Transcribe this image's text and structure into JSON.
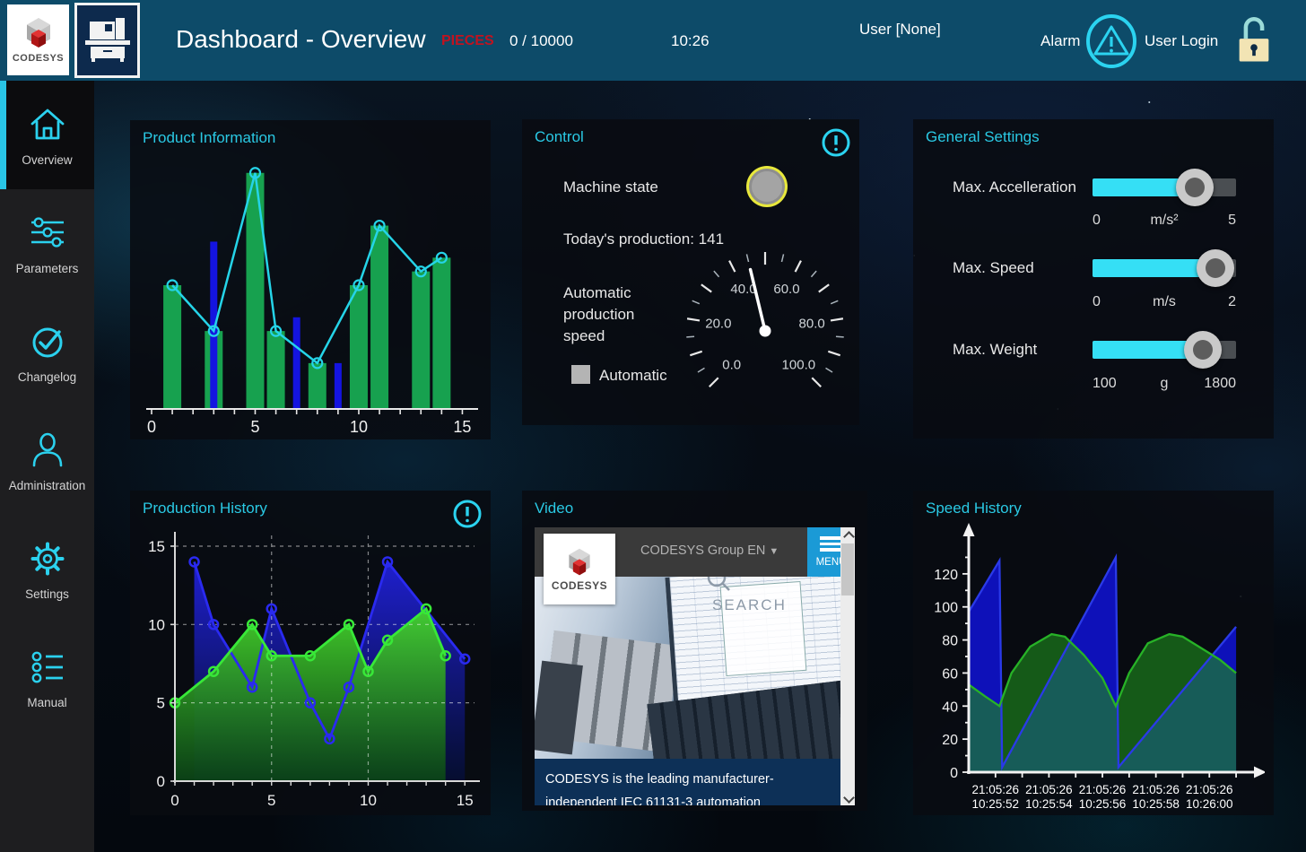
{
  "header": {
    "title": "Dashboard - Overview",
    "pieces_label": "PIECES",
    "pieces_value": "0 / 10000",
    "time": "10:26",
    "user": "User [None]",
    "alarm_label": "Alarm",
    "user_login_label": "User Login",
    "logo_text": "CODESYS"
  },
  "sidebar": {
    "items": [
      {
        "label": "Overview",
        "icon": "home",
        "active": true
      },
      {
        "label": "Parameters",
        "icon": "sliders",
        "active": false
      },
      {
        "label": "Changelog",
        "icon": "check-circle",
        "active": false
      },
      {
        "label": "Administration",
        "icon": "person",
        "active": false
      },
      {
        "label": "Settings",
        "icon": "gear",
        "active": false
      },
      {
        "label": "Manual",
        "icon": "list",
        "active": false
      }
    ]
  },
  "panels": {
    "product_information": {
      "title": "Product Information"
    },
    "control": {
      "title": "Control",
      "machine_state_label": "Machine state",
      "production_label": "Today's production: 141",
      "speed_label": "Automatic production speed",
      "automatic_label": "Automatic",
      "gauge": {
        "min": 0,
        "max": 100,
        "value": 45,
        "labels": [
          "0.0",
          "20.0",
          "40.0",
          "60.0",
          "80.0",
          "100.0"
        ]
      }
    },
    "general_settings": {
      "title": "General Settings",
      "sliders": [
        {
          "label": "Max. Accelleration",
          "min": "0",
          "unit": "m/s²",
          "max": "5",
          "fraction": 0.71
        },
        {
          "label": "Max. Speed",
          "min": "0",
          "unit": "m/s",
          "max": "2",
          "fraction": 0.855
        },
        {
          "label": "Max. Weight",
          "min": "100",
          "unit": "g",
          "max": "1800",
          "fraction": 0.77
        }
      ]
    },
    "production_history": {
      "title": "Production History"
    },
    "video": {
      "title": "Video",
      "site_logo": "CODESYS",
      "nav_label": "CODESYS Group EN",
      "menu_label": "MENU",
      "search_label": "SEARCH",
      "caption_line1": "CODESYS is the leading manufacturer-",
      "caption_line2": "independent IEC 61131-3 automation"
    },
    "speed_history": {
      "title": "Speed History"
    }
  },
  "chart_data": [
    {
      "id": "product_information",
      "type": "bar+line",
      "title": "Product Information",
      "xlim": [
        0,
        15.5
      ],
      "ylim": [
        0,
        10.8
      ],
      "x_ticks": [
        0,
        5,
        10,
        15
      ],
      "green_bars": {
        "x": [
          1,
          3,
          5,
          6,
          8,
          10,
          11,
          13,
          14
        ],
        "values": [
          5.4,
          3.4,
          10.3,
          3.4,
          2.0,
          5.4,
          8.0,
          6.0,
          6.6
        ]
      },
      "blue_bars": {
        "x": [
          3,
          7,
          9
        ],
        "values": [
          7.3,
          4.0,
          2.0
        ]
      },
      "line": {
        "x": [
          1,
          3,
          5,
          6,
          8,
          10,
          11,
          13,
          14
        ],
        "values": [
          5.4,
          3.4,
          10.3,
          3.4,
          2.0,
          5.4,
          8.0,
          6.0,
          6.6
        ]
      },
      "colors": {
        "green_bar": "#17a14f",
        "blue_bar": "#1414e0",
        "line": "#25d4e8"
      }
    },
    {
      "id": "production_history",
      "type": "area",
      "title": "Production History",
      "xlim": [
        0,
        15.5
      ],
      "ylim": [
        0,
        15.8
      ],
      "x_ticks": [
        0,
        5,
        10,
        15
      ],
      "y_ticks": [
        0,
        5,
        10,
        15
      ],
      "grid_x": [
        5,
        10
      ],
      "grid_y": [
        5,
        10,
        15
      ],
      "series": [
        {
          "name": "blue",
          "x": [
            1,
            2,
            4,
            5,
            7,
            8,
            9,
            11,
            15
          ],
          "values": [
            14,
            10,
            6,
            11,
            5,
            2.7,
            6,
            14,
            7.8
          ],
          "stroke": "#2a2af0",
          "fill_top": "#2020d8",
          "fill_bottom": "#050e33"
        },
        {
          "name": "green",
          "x": [
            0,
            2,
            4,
            5,
            7,
            9,
            10,
            11,
            13,
            14
          ],
          "values": [
            5,
            7,
            10,
            8,
            8,
            10,
            7,
            9,
            11,
            8
          ],
          "stroke": "#38e838",
          "fill_top": "#45d42c",
          "fill_bottom": "#0b4616"
        }
      ]
    },
    {
      "id": "speed_history",
      "type": "area",
      "title": "Speed History",
      "xlim": [
        0,
        10.4
      ],
      "ylim": [
        0,
        140
      ],
      "y_ticks": [
        0,
        20,
        40,
        60,
        80,
        100,
        120
      ],
      "x_tick_positions": [
        1,
        3,
        5,
        7,
        9
      ],
      "x_tick_labels": [
        [
          "21:05:26",
          "10:25:52"
        ],
        [
          "21:05:26",
          "10:25:54"
        ],
        [
          "21:05:26",
          "10:25:56"
        ],
        [
          "21:05:26",
          "10:25:58"
        ],
        [
          "21:05:26",
          "10:26:00"
        ]
      ],
      "series": [
        {
          "name": "blue",
          "x": [
            0,
            1.15,
            1.25,
            5.5,
            5.6,
            10
          ],
          "values": [
            97,
            128,
            3,
            130,
            3,
            88
          ],
          "stroke": "#2a3ae8",
          "fill": "#0f12c8",
          "fill_opacity": 0.92
        },
        {
          "name": "green",
          "x": [
            0,
            0.6,
            1.15,
            1.6,
            2.3,
            3.1,
            3.6,
            4.3,
            5.0,
            5.5,
            6.0,
            6.7,
            7.5,
            8.0,
            8.7,
            9.4,
            10
          ],
          "values": [
            53,
            46,
            40,
            60,
            76,
            83.5,
            82,
            71,
            57,
            40,
            60,
            78,
            83.5,
            82,
            75,
            68,
            60
          ],
          "stroke": "#27b227",
          "fill": "#1d8a1d",
          "fill_opacity": 0.62
        }
      ]
    }
  ]
}
